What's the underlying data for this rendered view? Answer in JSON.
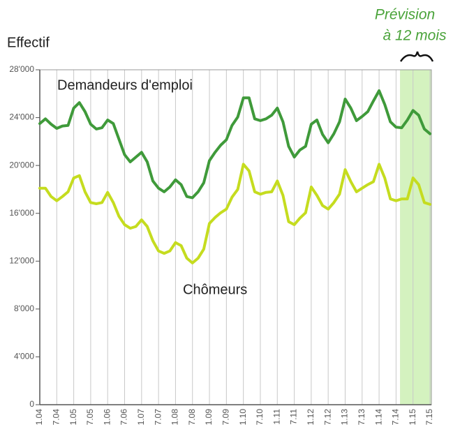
{
  "chart_data": {
    "type": "line",
    "y_label": "Effectif",
    "forecast_label": [
      "Prévision",
      "à 12 mois"
    ],
    "categories": [
      "1.04",
      null,
      null,
      "7.04",
      null,
      null,
      "1.05",
      null,
      null,
      "7.05",
      null,
      null,
      "1.06",
      null,
      null,
      "7.06",
      null,
      null,
      "1.07",
      null,
      null,
      "7.07",
      null,
      null,
      "1.08",
      null,
      null,
      "7.08",
      null,
      null,
      "1.09",
      null,
      null,
      "7.09",
      null,
      null,
      "1.10",
      null,
      null,
      "7.10",
      null,
      null,
      "1.11",
      null,
      null,
      "7.11",
      null,
      null,
      "1.12",
      null,
      null,
      "7.12",
      null,
      null,
      "1.13",
      null,
      null,
      "7.13",
      null,
      null,
      "1.14",
      null,
      null,
      "7.14",
      null,
      null,
      "1.15",
      null,
      null,
      "7.15"
    ],
    "series": [
      {
        "name": "Demandeurs d'emploi",
        "color": "#3f9a3a",
        "values": [
          23500,
          23900,
          23450,
          23100,
          23300,
          23350,
          24800,
          25250,
          24500,
          23450,
          23050,
          23150,
          23800,
          23500,
          22200,
          20900,
          20300,
          20700,
          21100,
          20300,
          18700,
          18100,
          17800,
          18200,
          18800,
          18400,
          17400,
          17300,
          17800,
          18550,
          20400,
          21100,
          21700,
          22150,
          23350,
          24050,
          25650,
          25650,
          23900,
          23750,
          23900,
          24200,
          24800,
          23650,
          21600,
          20700,
          21300,
          21600,
          23450,
          23800,
          22600,
          21900,
          22650,
          23650,
          25550,
          24800,
          23750,
          24100,
          24500,
          25400,
          26250,
          25100,
          23650,
          23200,
          23150,
          23800,
          24600,
          24200,
          23050,
          22650
        ]
      },
      {
        "name": "Chômeurs",
        "color": "#c5dc1f",
        "values": [
          18100,
          18100,
          17400,
          17050,
          17400,
          17800,
          18950,
          19150,
          17800,
          16900,
          16800,
          16900,
          17750,
          16900,
          15750,
          15050,
          14750,
          14900,
          15450,
          14900,
          13700,
          12850,
          12650,
          12850,
          13550,
          13300,
          12250,
          11850,
          12250,
          13000,
          15150,
          15650,
          16050,
          16350,
          17350,
          18000,
          20100,
          19550,
          17800,
          17600,
          17750,
          17800,
          18700,
          17500,
          15300,
          15050,
          15600,
          16050,
          18200,
          17500,
          16650,
          16350,
          16900,
          17600,
          19650,
          18650,
          17800,
          18100,
          18400,
          18650,
          20100,
          18950,
          17200,
          17050,
          17200,
          17200,
          18950,
          18400,
          16900,
          16750
        ]
      }
    ],
    "ylim": [
      0,
      28000
    ],
    "yticks": [
      0,
      {
        "value": 4000,
        "label": "4'000"
      },
      {
        "value": 8000,
        "label": "8'000"
      },
      {
        "value": 12000,
        "label": "12'000"
      },
      {
        "value": 16000,
        "label": "16'000"
      },
      {
        "value": 20000,
        "label": "20'000"
      },
      {
        "value": 24000,
        "label": "24'000"
      },
      {
        "value": 28000,
        "label": "28'000"
      }
    ]
  }
}
